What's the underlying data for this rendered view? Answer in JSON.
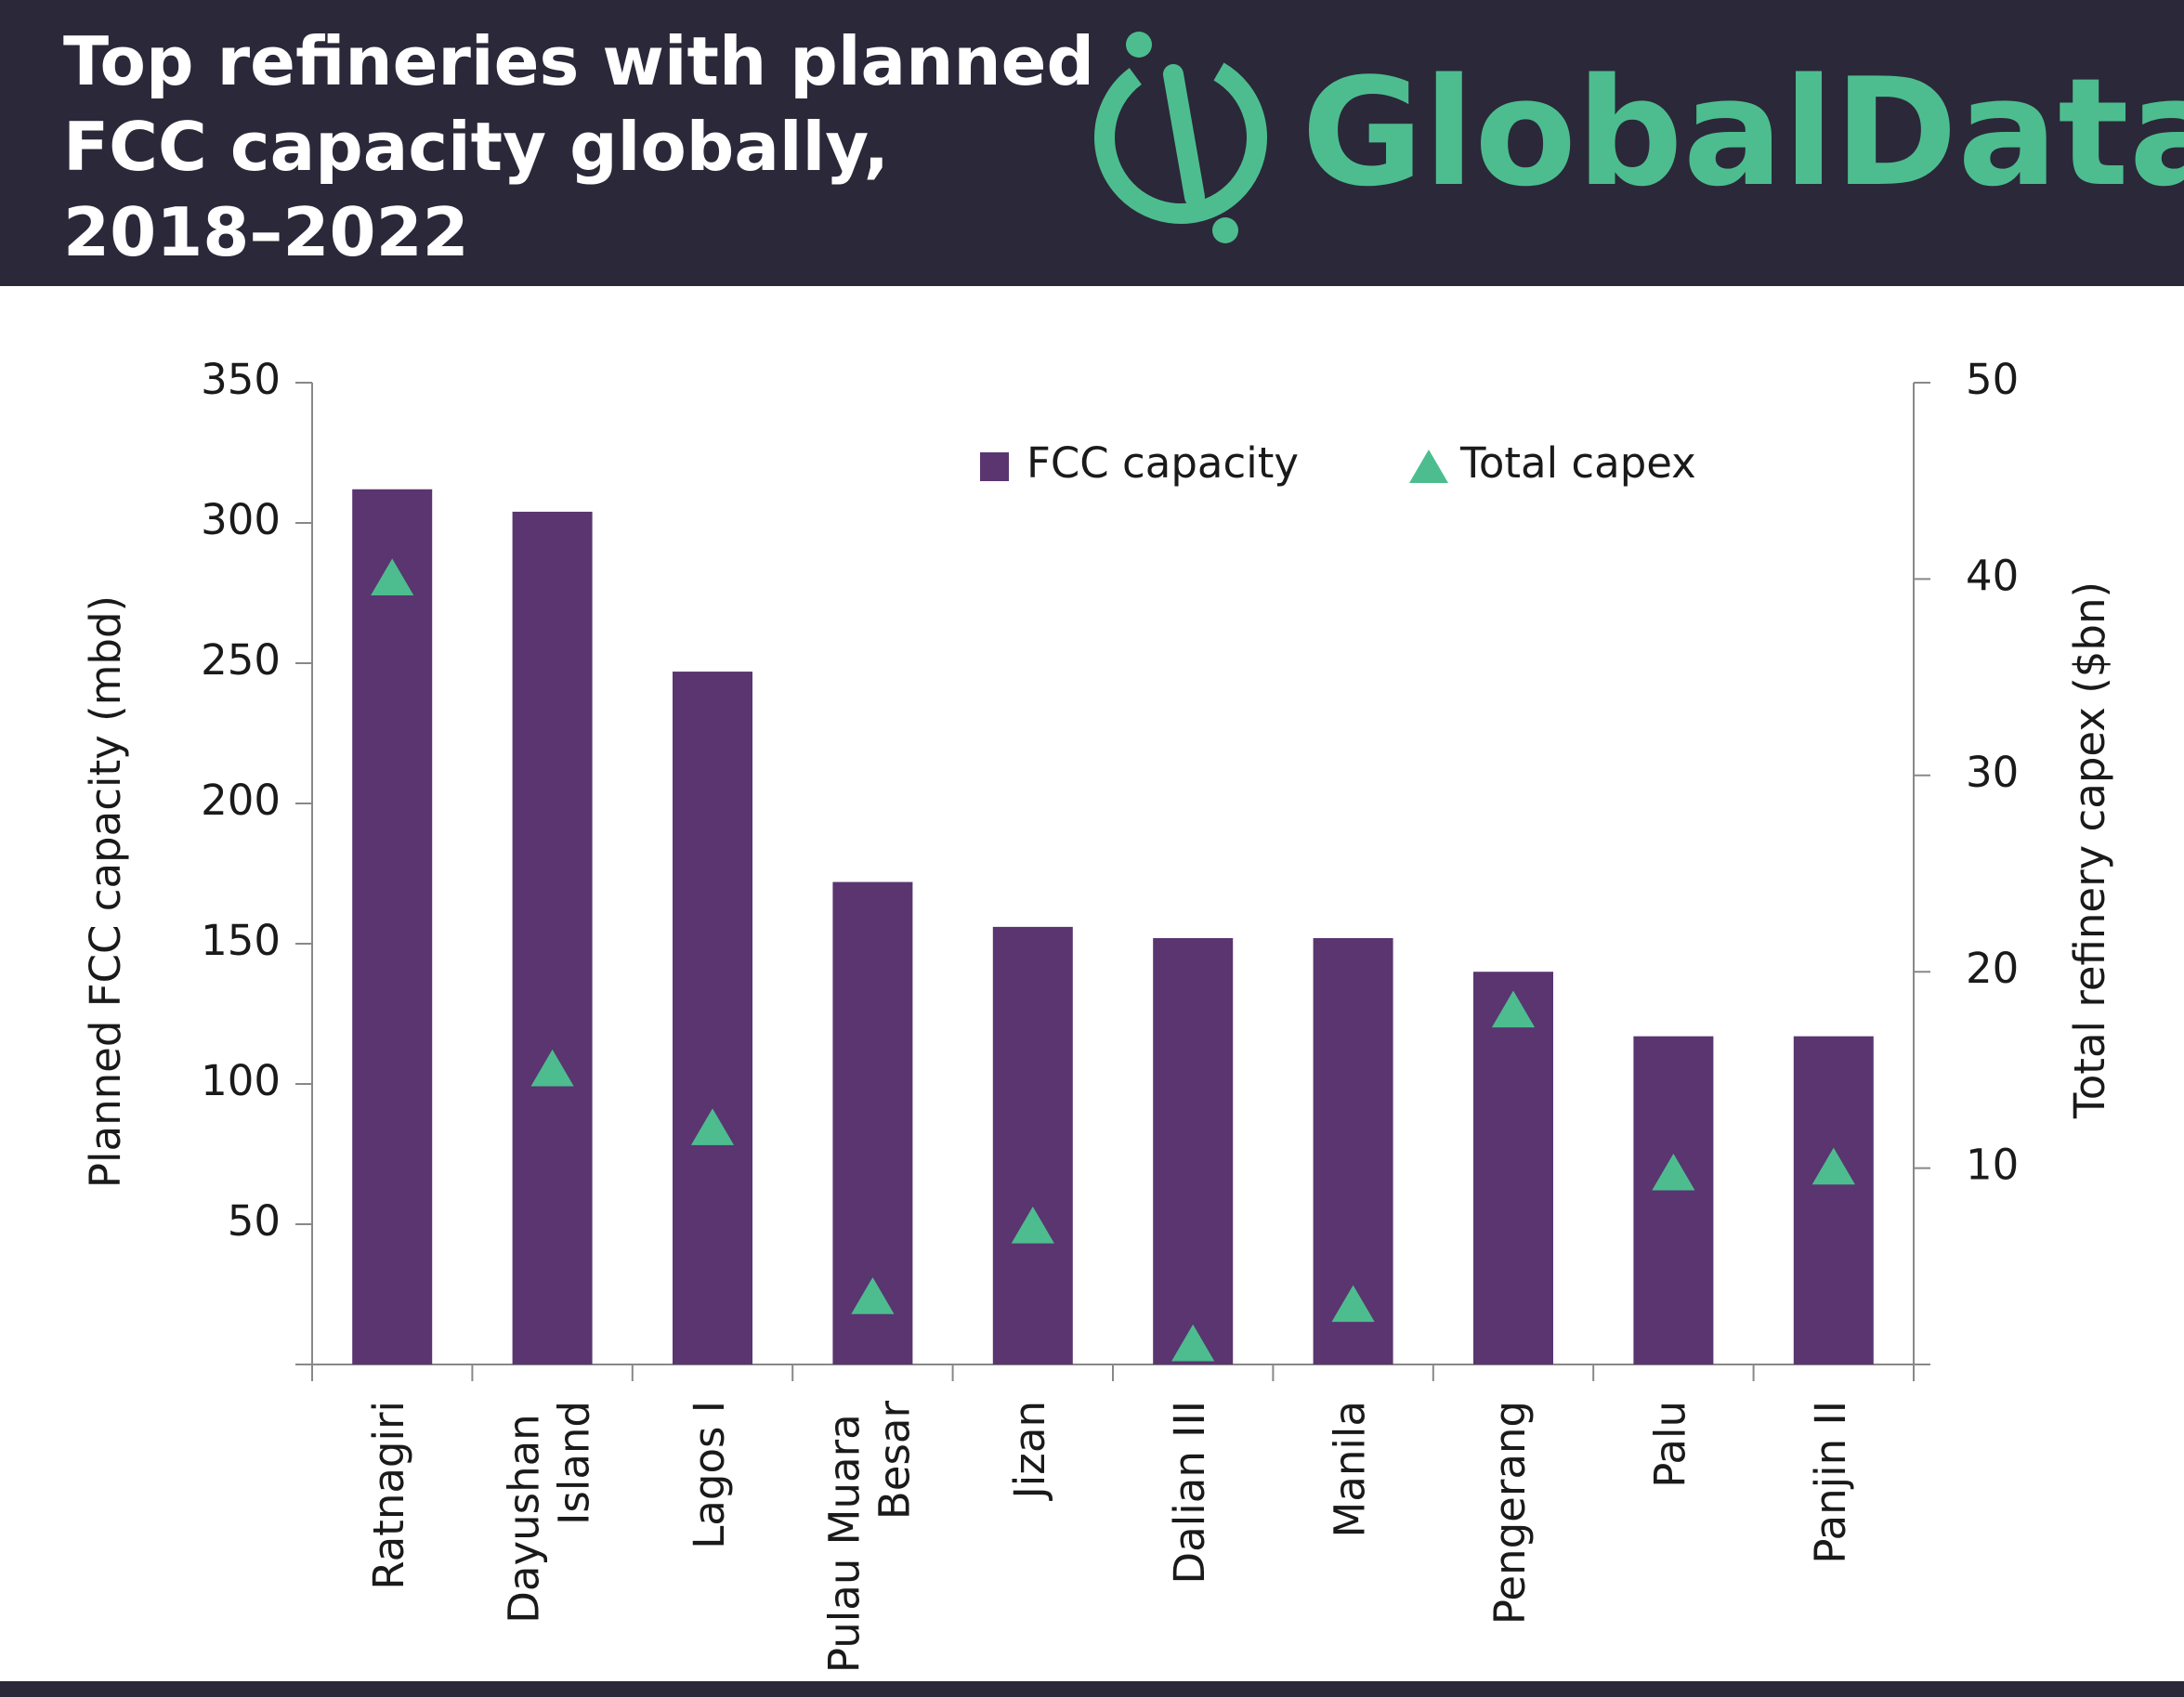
{
  "chart_data": {
    "type": "bar",
    "title": "Top refineries with planned FCC capacity globally, 2018–2022",
    "brand": "GlobalData.",
    "categories": [
      "Ratnagiri",
      "Dayushan Island",
      "Lagos I",
      "Pulau Muara Besar",
      "Jizan",
      "Dalian III",
      "Manila",
      "Pengerang",
      "Palu",
      "Panjin II"
    ],
    "series": [
      {
        "name": "FCC capacity",
        "type": "bar",
        "color": "#5a3570",
        "values": [
          312,
          304,
          247,
          172,
          156,
          152,
          152,
          140,
          117,
          117
        ]
      },
      {
        "name": "Total capex",
        "type": "triangle",
        "axis": "y2",
        "color": "#4dbd8f",
        "values": [
          40,
          15,
          12,
          3.4,
          7,
          1,
          3,
          18,
          9.7,
          10
        ]
      }
    ],
    "ylabel": "Planned FCC capacity (mbd)",
    "y2label": "Total refinery capex ($bn)",
    "ylim": [
      0,
      350
    ],
    "yticks": [
      50,
      100,
      150,
      200,
      250,
      300,
      350
    ],
    "y2lim": [
      0,
      50
    ],
    "y2ticks": [
      10,
      20,
      30,
      40,
      50
    ],
    "grid": false
  }
}
